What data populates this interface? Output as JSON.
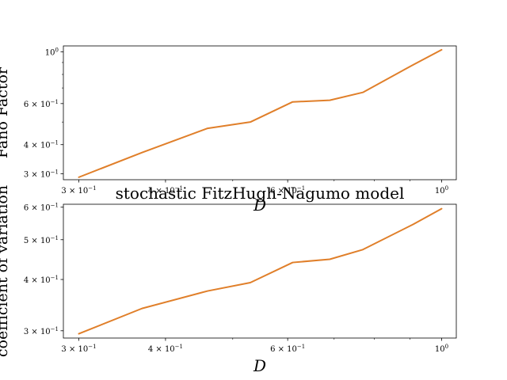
{
  "chart_data": [
    {
      "type": "line",
      "title": "",
      "xlabel": "D",
      "ylabel": "Fano Factor",
      "xscale": "log",
      "yscale": "log",
      "xlim": [
        0.285,
        1.05
      ],
      "ylim": [
        0.283,
        1.06
      ],
      "grid": false,
      "x_ticks": [
        {
          "value": 0.3,
          "base": "3",
          "exp": "−1"
        },
        {
          "value": 0.4,
          "base": "4",
          "exp": "−1"
        },
        {
          "value": 0.6,
          "base": "6",
          "exp": "−1"
        },
        {
          "value": 1.0,
          "base": "10",
          "exp": "0",
          "plain_power": true
        }
      ],
      "y_ticks": [
        {
          "value": 0.3,
          "base": "3",
          "exp": "−1"
        },
        {
          "value": 0.4,
          "base": "4",
          "exp": "−1"
        },
        {
          "value": 0.6,
          "base": "6",
          "exp": "−1"
        },
        {
          "value": 1.0,
          "base": "10",
          "exp": "0",
          "plain_power": true
        }
      ],
      "series": [
        {
          "color": "#e07f2a",
          "x": [
            0.3,
            0.37,
            0.46,
            0.53,
            0.61,
            0.69,
            0.77,
            0.91,
            1.0
          ],
          "y": [
            0.29,
            0.37,
            0.47,
            0.5,
            0.61,
            0.62,
            0.67,
            0.88,
            1.02
          ]
        }
      ]
    },
    {
      "type": "line",
      "title": "stochastic FitzHugh-Nagumo model",
      "xlabel": "D",
      "ylabel": "coefficient of variation",
      "xscale": "log",
      "yscale": "log",
      "xlim": [
        0.285,
        1.05
      ],
      "ylim": [
        0.288,
        0.61
      ],
      "grid": false,
      "x_ticks": [
        {
          "value": 0.3,
          "base": "3",
          "exp": "−1"
        },
        {
          "value": 0.4,
          "base": "4",
          "exp": "−1"
        },
        {
          "value": 0.6,
          "base": "6",
          "exp": "−1"
        },
        {
          "value": 1.0,
          "base": "10",
          "exp": "0",
          "plain_power": true
        }
      ],
      "y_ticks": [
        {
          "value": 0.3,
          "base": "3",
          "exp": "−1"
        },
        {
          "value": 0.4,
          "base": "4",
          "exp": "−1"
        },
        {
          "value": 0.5,
          "base": "5",
          "exp": "−1"
        },
        {
          "value": 0.6,
          "base": "6",
          "exp": "−1"
        }
      ],
      "series": [
        {
          "color": "#e07f2a",
          "x": [
            0.3,
            0.37,
            0.46,
            0.53,
            0.61,
            0.69,
            0.77,
            0.91,
            1.0
          ],
          "y": [
            0.295,
            0.34,
            0.375,
            0.393,
            0.44,
            0.448,
            0.473,
            0.545,
            0.595
          ]
        }
      ]
    }
  ]
}
